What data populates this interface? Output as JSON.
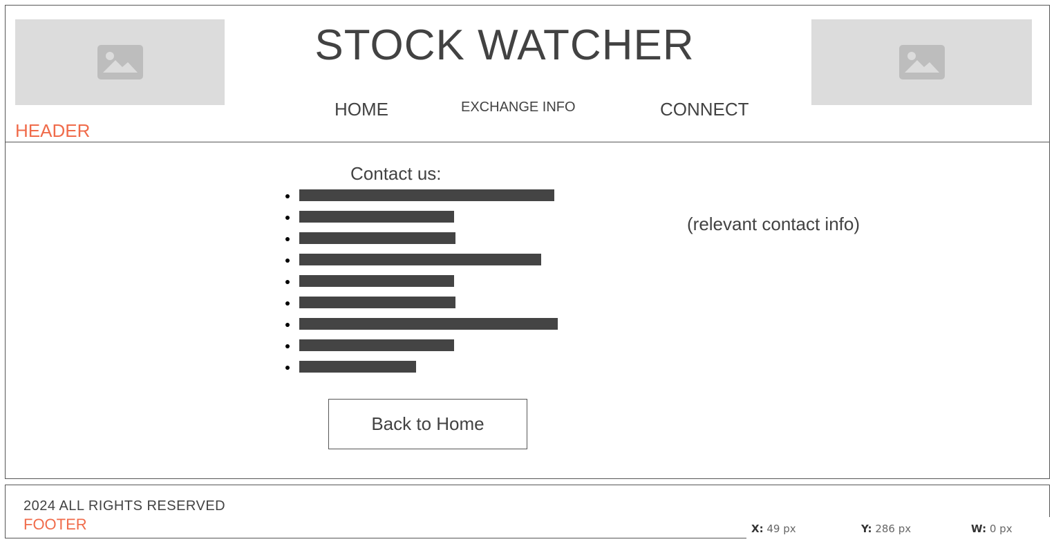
{
  "header": {
    "title": "STOCK WATCHER",
    "region_label": "HEADER",
    "nav": {
      "home": "HOME",
      "exchange_info": "EXCHANGE INFO",
      "connect": "CONNECT"
    },
    "image_icon": "image-placeholder-icon"
  },
  "main": {
    "contact_heading": "Contact us:",
    "contact_items_count": 9,
    "contact_info": "(relevant contact info)",
    "back_button_label": "Back to Home"
  },
  "footer": {
    "copyright": "2024 ALL RIGHTS RESERVED",
    "region_label": "FOOTER"
  },
  "coords": {
    "x_label": "X:",
    "x_value": "49 px",
    "y_label": "Y:",
    "y_value": "286 px",
    "w_label": "W:",
    "w_value": "0 px"
  },
  "colors": {
    "text": "#424242",
    "accent": "#f06b4a",
    "placeholder": "#dcdcdc",
    "bar": "#444444"
  }
}
